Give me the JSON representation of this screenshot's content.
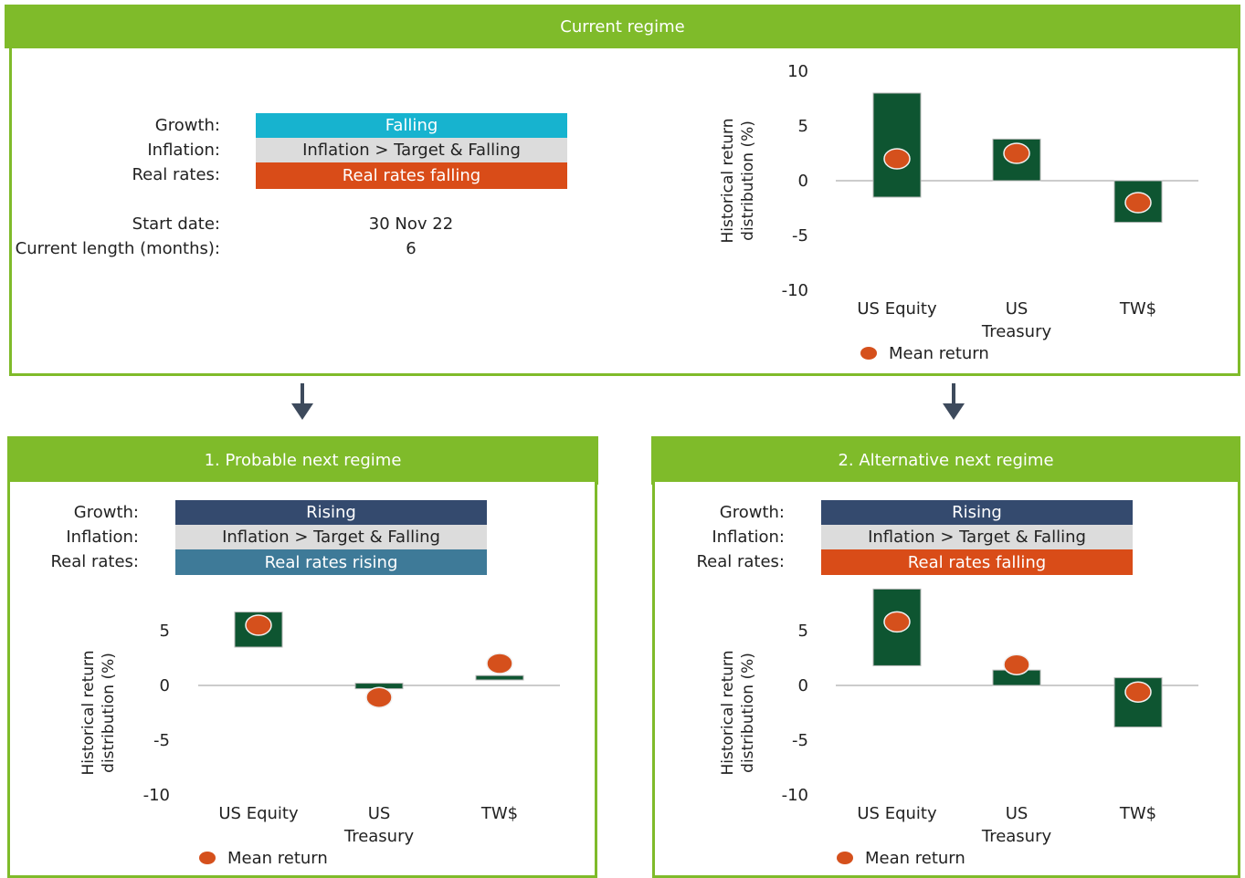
{
  "colors": {
    "green_frame": "#7fbb2a",
    "bar_fill": "#0e5531",
    "mean_dot": "#d5501c",
    "falling_blue": "#17b3cf",
    "inflation_grey": "#dcdcdc",
    "real_falling_orange": "#d94c18",
    "rising_navy": "#344a6e",
    "real_rising_steel": "#3e7a98",
    "arrow": "#3d4a5c"
  },
  "current": {
    "title": "Current regime",
    "growth_label": "Growth:",
    "inflation_label": "Inflation:",
    "realrates_label": "Real rates:",
    "growth_value": "Falling",
    "inflation_value": "Inflation > Target & Falling",
    "realrates_value": "Real rates falling",
    "start_label": "Start date:",
    "start_value": "30 Nov 22",
    "length_label": "Current length (months):",
    "length_value": "6"
  },
  "probable": {
    "title": "1. Probable next regime",
    "growth_label": "Growth:",
    "inflation_label": "Inflation:",
    "realrates_label": "Real rates:",
    "growth_value": "Rising",
    "inflation_value": "Inflation > Target & Falling",
    "realrates_value": "Real rates rising"
  },
  "alternative": {
    "title": "2. Alternative next regime",
    "growth_label": "Growth:",
    "inflation_label": "Inflation:",
    "realrates_label": "Real rates:",
    "growth_value": "Rising",
    "inflation_value": "Inflation > Target & Falling",
    "realrates_value": "Real rates falling"
  },
  "chart_data": [
    {
      "type": "bar",
      "panel": "current",
      "ylabel": "Historical return distribution (%)",
      "ylim": [
        -10,
        10
      ],
      "yticks": [
        10,
        5,
        0,
        -5,
        -10
      ],
      "categories": [
        "US Equity",
        "US Treasury",
        "TW$"
      ],
      "ranges": [
        [
          -1.5,
          8
        ],
        [
          0,
          3.8
        ],
        [
          -3.8,
          0
        ]
      ],
      "means": [
        2,
        2.5,
        -2
      ],
      "legend": "Mean return"
    },
    {
      "type": "bar",
      "panel": "probable",
      "ylabel": "Historical return distribution (%)",
      "ylim": [
        -10,
        5
      ],
      "yticks": [
        5,
        0,
        -5,
        -10
      ],
      "categories": [
        "US Equity",
        "US Treasury",
        "TW$"
      ],
      "ranges": [
        [
          3.5,
          6.7
        ],
        [
          -0.3,
          0.2
        ],
        [
          0.5,
          0.9
        ]
      ],
      "means": [
        5.5,
        -1.1,
        2
      ],
      "legend": "Mean return"
    },
    {
      "type": "bar",
      "panel": "alternative",
      "ylabel": "Historical return distribution (%)",
      "ylim": [
        -10,
        5
      ],
      "yticks": [
        5,
        0,
        -5,
        -10
      ],
      "categories": [
        "US Equity",
        "US Treasury",
        "TW$"
      ],
      "ranges": [
        [
          1.8,
          8.8
        ],
        [
          0,
          1.4
        ],
        [
          -3.8,
          0.7
        ]
      ],
      "means": [
        5.8,
        1.9,
        -0.6
      ],
      "legend": "Mean return"
    }
  ]
}
